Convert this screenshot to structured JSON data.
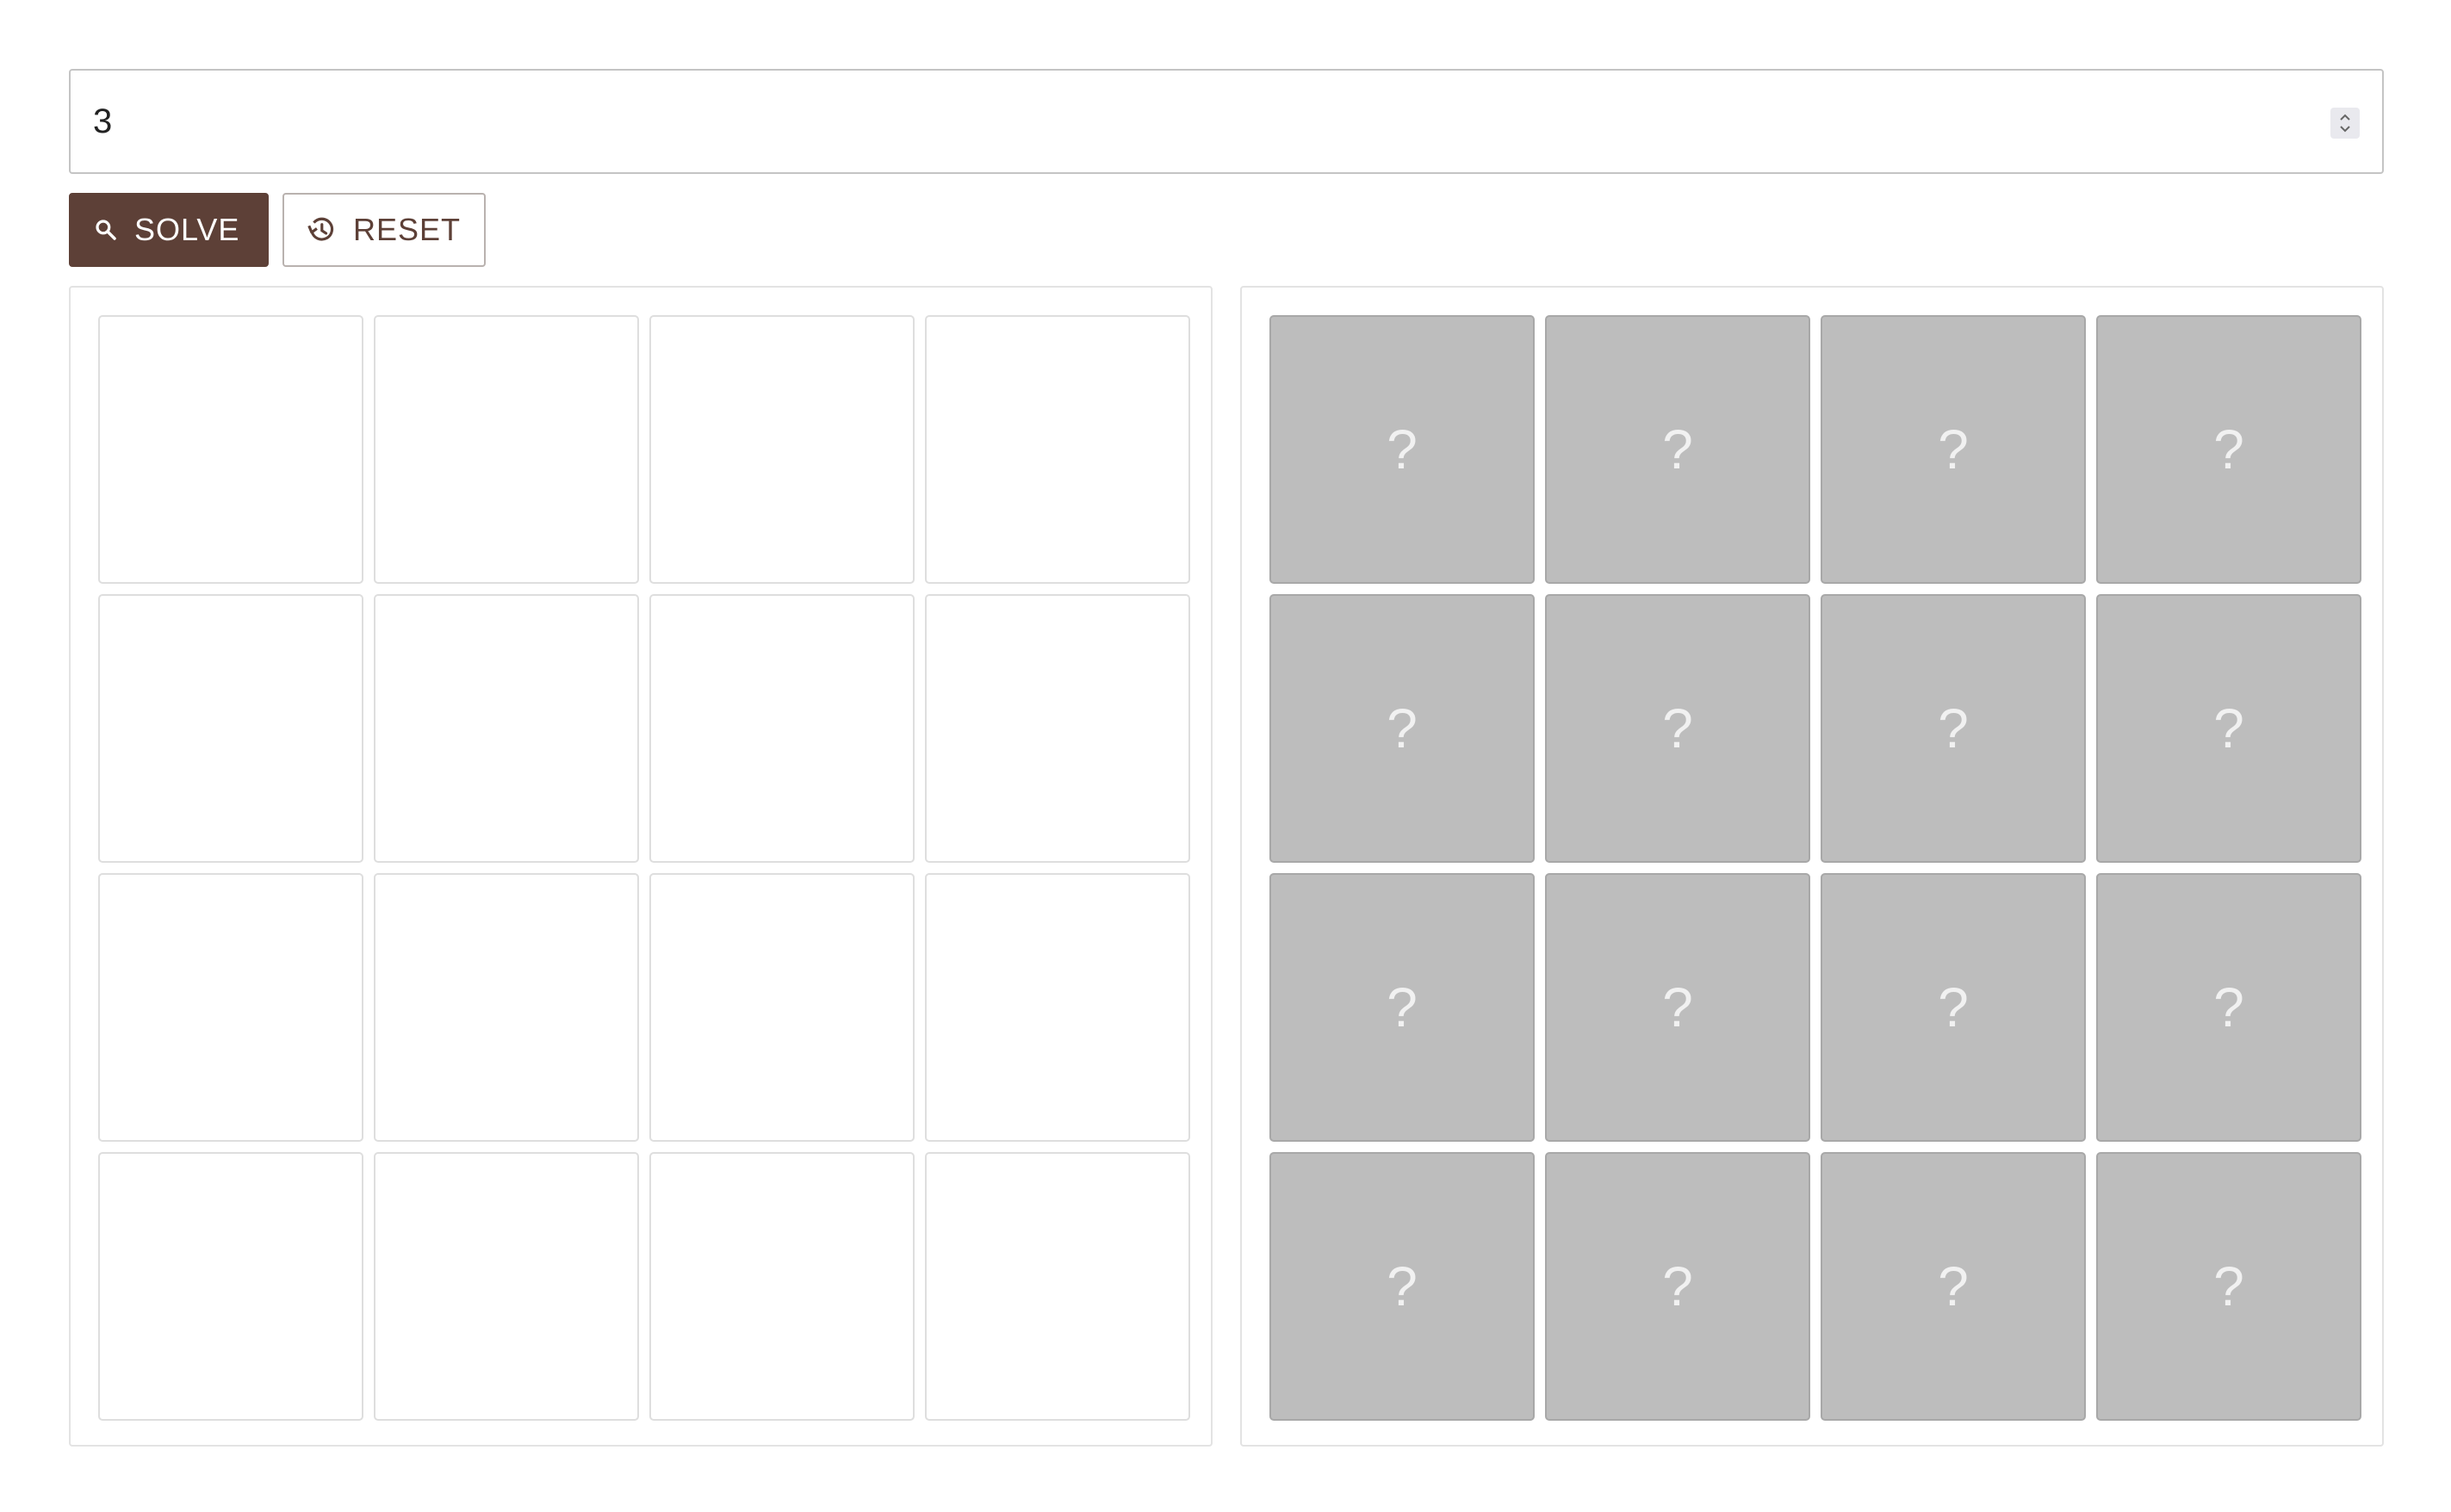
{
  "number_input": {
    "value": "3"
  },
  "toolbar": {
    "solve_label": "SOLVE",
    "reset_label": "RESET"
  },
  "colors": {
    "primary": "#5d4037",
    "hidden_tile": "#bdbdbd"
  },
  "icons": {
    "solve": "search-icon",
    "reset": "history-icon",
    "spinner": "chevron-up-down-icon"
  },
  "input_grid": {
    "rows": 4,
    "cols": 4,
    "cells": [
      "",
      "",
      "",
      "",
      "",
      "",
      "",
      "",
      "",
      "",
      "",
      "",
      "",
      "",
      "",
      ""
    ]
  },
  "result_grid": {
    "rows": 4,
    "cols": 4,
    "cells": [
      "?",
      "?",
      "?",
      "?",
      "?",
      "?",
      "?",
      "?",
      "?",
      "?",
      "?",
      "?",
      "?",
      "?",
      "?",
      "?"
    ]
  }
}
